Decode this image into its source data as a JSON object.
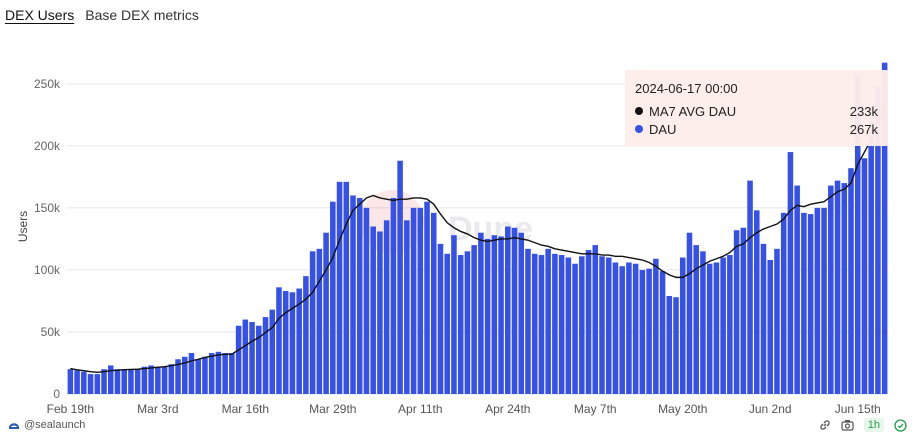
{
  "tabs": [
    {
      "label": "DEX Users",
      "active": true
    },
    {
      "label": "Base DEX metrics",
      "active": false
    }
  ],
  "watermark": "Dune",
  "colors": {
    "bar": "#3651e8",
    "line": "#111111",
    "grid": "#e6e6e6",
    "tooltip_bg": "#fdeceb",
    "badge_text": "#1e9e4a"
  },
  "tooltip": {
    "title": "2024-06-17 00:00",
    "rows": [
      {
        "name": "MA7 AVG DAU",
        "value": "233k",
        "color": "#111111"
      },
      {
        "name": "DAU",
        "value": "267k",
        "color": "#3651e8"
      }
    ]
  },
  "footer": {
    "author": "@sealaunch",
    "author_icon": "sealaunch-logo-icon",
    "refresh": "1h"
  },
  "icons": [
    "link-icon",
    "camera-icon",
    "refresh-check-icon"
  ],
  "chart_data": {
    "type": "bar",
    "ylabel": "Users",
    "ylim": [
      0,
      270000
    ],
    "yticks": [
      0,
      50000,
      100000,
      150000,
      200000,
      250000
    ],
    "ytick_labels": [
      "0",
      "50k",
      "100k",
      "150k",
      "200k",
      "250k"
    ],
    "xtick_labels": [
      {
        "label": "Feb 19th",
        "index": 0
      },
      {
        "label": "Mar 3rd",
        "index": 13
      },
      {
        "label": "Mar 16th",
        "index": 26
      },
      {
        "label": "Mar 29th",
        "index": 39
      },
      {
        "label": "Apr 11th",
        "index": 52
      },
      {
        "label": "Apr 24th",
        "index": 65
      },
      {
        "label": "May 7th",
        "index": 78
      },
      {
        "label": "May 20th",
        "index": 91
      },
      {
        "label": "Jun 2nd",
        "index": 104
      },
      {
        "label": "Jun 15th",
        "index": 117
      }
    ],
    "grid": true,
    "legend": "none",
    "series": [
      {
        "name": "DAU",
        "type": "bar",
        "values": [
          20000,
          19000,
          18000,
          16000,
          16000,
          20000,
          23000,
          20000,
          20000,
          20000,
          20000,
          22000,
          23000,
          22000,
          22000,
          24000,
          28000,
          30000,
          33000,
          28000,
          30000,
          33000,
          34000,
          33000,
          33000,
          55000,
          60000,
          58000,
          55000,
          62000,
          68000,
          86000,
          83000,
          82000,
          85000,
          95000,
          115000,
          117000,
          130000,
          155000,
          171000,
          171000,
          160000,
          158000,
          150000,
          135000,
          131000,
          140000,
          158000,
          188000,
          140000,
          150000,
          150000,
          155000,
          146000,
          121000,
          113000,
          128000,
          112000,
          115000,
          120000,
          130000,
          125000,
          128000,
          127000,
          135000,
          134000,
          130000,
          117000,
          113000,
          112000,
          117000,
          113000,
          112000,
          110000,
          105000,
          111000,
          116000,
          120000,
          111000,
          110000,
          106000,
          103000,
          106000,
          105000,
          100000,
          101000,
          109000,
          99000,
          79000,
          78000,
          110000,
          130000,
          120000,
          115000,
          105000,
          106000,
          110000,
          112000,
          132000,
          134000,
          172000,
          148000,
          121000,
          108000,
          117000,
          146000,
          195000,
          168000,
          146000,
          145000,
          150000,
          150000,
          168000,
          172000,
          170000,
          182000,
          257000,
          190000,
          219000,
          248000,
          267000
        ]
      },
      {
        "name": "MA7 AVG DAU",
        "type": "line",
        "values": [
          20500,
          19500,
          18800,
          18000,
          17500,
          18000,
          18800,
          19200,
          19600,
          19800,
          20000,
          20500,
          21000,
          21500,
          22000,
          22800,
          23800,
          25000,
          26700,
          28000,
          29500,
          30500,
          31500,
          32000,
          32200,
          35500,
          39000,
          42500,
          45500,
          49500,
          53500,
          61000,
          65500,
          69000,
          72500,
          76500,
          82000,
          91000,
          100000,
          110000,
          124000,
          137000,
          148000,
          153000,
          158000,
          160000,
          158000,
          157000,
          156000,
          157000,
          157000,
          158000,
          158000,
          157000,
          153000,
          145000,
          138000,
          134000,
          131000,
          129000,
          126000,
          124000,
          123000,
          124000,
          125000,
          125000,
          126000,
          125000,
          124000,
          122000,
          120000,
          119000,
          117000,
          116000,
          115000,
          114000,
          113000,
          113000,
          113000,
          112000,
          112000,
          111000,
          111000,
          110000,
          109000,
          108000,
          106000,
          103000,
          99000,
          96000,
          94000,
          94000,
          97000,
          101000,
          104000,
          107000,
          109000,
          111000,
          114000,
          119000,
          121000,
          126000,
          130000,
          133000,
          135000,
          137000,
          141000,
          148000,
          152000,
          151000,
          153000,
          154000,
          155000,
          159000,
          163000,
          165000,
          170000,
          185000,
          195000,
          205000,
          221000,
          233000
        ]
      }
    ]
  }
}
